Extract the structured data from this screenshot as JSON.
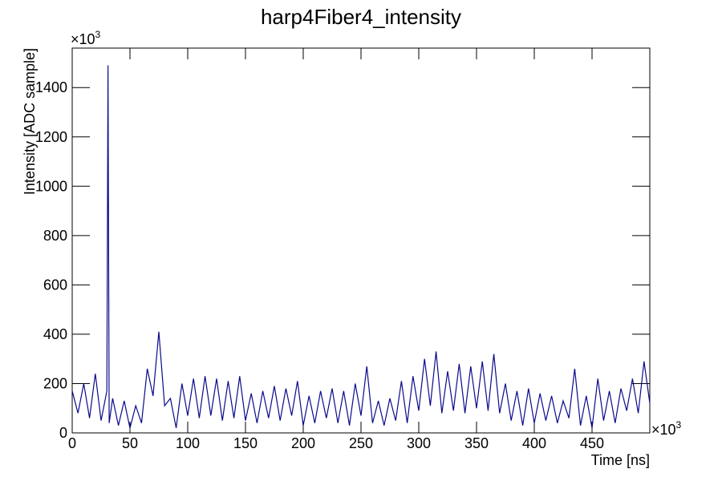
{
  "chart_data": {
    "type": "line",
    "title": "harp4Fiber4_intensity",
    "xlabel": "Time [ns]",
    "ylabel": "Intensity [ADC sample]",
    "x_exponent": {
      "base": "×10",
      "power": "3"
    },
    "y_exponent": {
      "base": "×10",
      "power": "3"
    },
    "x": [
      0,
      5,
      10,
      15,
      20,
      25,
      30,
      31,
      32,
      35,
      40,
      45,
      50,
      55,
      60,
      65,
      70,
      75,
      80,
      85,
      90,
      95,
      100,
      105,
      110,
      115,
      120,
      125,
      130,
      135,
      140,
      145,
      150,
      155,
      160,
      165,
      170,
      175,
      180,
      185,
      190,
      195,
      200,
      205,
      210,
      215,
      220,
      225,
      230,
      235,
      240,
      245,
      250,
      255,
      260,
      265,
      270,
      275,
      280,
      285,
      290,
      295,
      300,
      305,
      310,
      315,
      320,
      325,
      330,
      335,
      340,
      345,
      350,
      355,
      360,
      365,
      370,
      375,
      380,
      385,
      390,
      395,
      400,
      405,
      410,
      415,
      420,
      425,
      430,
      435,
      440,
      445,
      450,
      455,
      460,
      465,
      470,
      475,
      480,
      485,
      490,
      495,
      500
    ],
    "series": [
      {
        "name": "harp4Fiber4_intensity",
        "color": "#0a0a8c",
        "values": [
          170,
          80,
          200,
          60,
          240,
          50,
          170,
          1490,
          40,
          140,
          30,
          130,
          20,
          110,
          40,
          260,
          150,
          410,
          110,
          140,
          20,
          200,
          70,
          220,
          60,
          230,
          70,
          220,
          50,
          210,
          60,
          230,
          50,
          160,
          40,
          170,
          60,
          190,
          50,
          180,
          70,
          210,
          30,
          150,
          40,
          170,
          60,
          180,
          40,
          170,
          30,
          200,
          70,
          270,
          40,
          130,
          30,
          140,
          50,
          210,
          40,
          230,
          90,
          300,
          110,
          330,
          80,
          250,
          90,
          280,
          80,
          270,
          100,
          290,
          90,
          320,
          80,
          200,
          50,
          170,
          30,
          180,
          40,
          160,
          50,
          150,
          40,
          130,
          60,
          260,
          30,
          150,
          20,
          220,
          50,
          170,
          40,
          180,
          90,
          220,
          80,
          290,
          120
        ]
      }
    ],
    "xlim": [
      0,
      500
    ],
    "ylim": [
      0,
      1560
    ],
    "xticks": [
      0,
      50,
      100,
      150,
      200,
      250,
      300,
      350,
      400,
      450
    ],
    "yticks": [
      0,
      200,
      400,
      600,
      800,
      1000,
      1200,
      1400
    ]
  }
}
